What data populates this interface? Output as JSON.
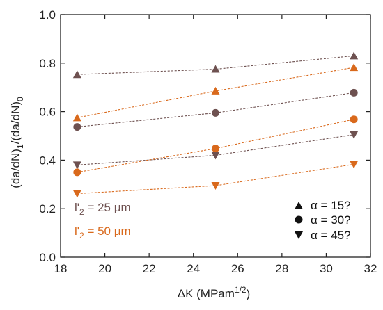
{
  "chart_data": {
    "type": "scatter",
    "xlabel": "ΔK (MPam",
    "xlabel_sup": "1/2",
    "xlabel_close": ")",
    "ylabel": "(da/dN)",
    "ylabel_sub1": "1",
    "ylabel_mid": "/(da/dN)",
    "ylabel_sub0": "0",
    "xlim": [
      18,
      32
    ],
    "ylim": [
      0.0,
      1.0
    ],
    "xticks": [
      18,
      20,
      22,
      24,
      26,
      28,
      30,
      32
    ],
    "yticks": [
      0.0,
      0.2,
      0.4,
      0.6,
      0.8,
      1.0
    ],
    "ytick_labels": [
      "0.0",
      "0.2",
      "0.4",
      "0.6",
      "0.8",
      "1.0"
    ],
    "grid": false,
    "colors": {
      "brown": "#6e5150",
      "orange": "#d9691c",
      "axis": "#222222"
    },
    "series": [
      {
        "l2": "25",
        "alpha": "15",
        "color": "brown",
        "marker": "triangle-up",
        "x": [
          18.75,
          25,
          31.25
        ],
        "y": [
          0.753,
          0.775,
          0.83
        ]
      },
      {
        "l2": "25",
        "alpha": "30",
        "color": "brown",
        "marker": "circle",
        "x": [
          18.75,
          25,
          31.25
        ],
        "y": [
          0.537,
          0.595,
          0.678
        ]
      },
      {
        "l2": "25",
        "alpha": "45",
        "color": "brown",
        "marker": "triangle-down",
        "x": [
          18.75,
          25,
          31.25
        ],
        "y": [
          0.38,
          0.42,
          0.505
        ]
      },
      {
        "l2": "50",
        "alpha": "15",
        "color": "orange",
        "marker": "triangle-up",
        "x": [
          18.75,
          25,
          31.25
        ],
        "y": [
          0.575,
          0.685,
          0.782
        ]
      },
      {
        "l2": "50",
        "alpha": "30",
        "color": "orange",
        "marker": "circle",
        "x": [
          18.75,
          25,
          31.25
        ],
        "y": [
          0.35,
          0.448,
          0.568
        ]
      },
      {
        "l2": "50",
        "alpha": "45",
        "color": "orange",
        "marker": "triangle-down",
        "x": [
          18.75,
          25,
          31.25
        ],
        "y": [
          0.262,
          0.295,
          0.383
        ]
      }
    ],
    "annotations": [
      {
        "prefix": "l'",
        "sub": "2",
        "value": " = 25 μm",
        "color": "brown"
      },
      {
        "prefix": "l'",
        "sub": "2",
        "value": " = 50 μm",
        "color": "orange"
      }
    ],
    "legend": {
      "placement": "bottom-right",
      "entries": [
        {
          "marker": "triangle-up",
          "label": "α = 15?"
        },
        {
          "marker": "circle",
          "label": "α = 30?"
        },
        {
          "marker": "triangle-down",
          "label": "α = 45?"
        }
      ]
    }
  }
}
